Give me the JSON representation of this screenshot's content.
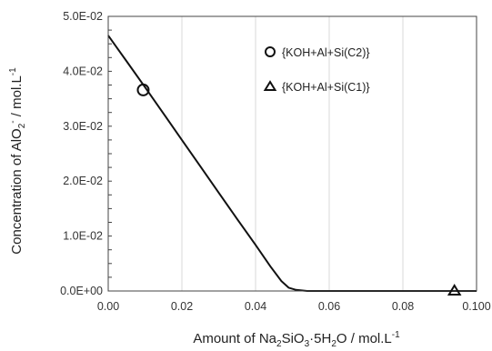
{
  "chart_data": {
    "type": "line",
    "xlabel_parts": {
      "pre": "Amount of Na",
      "sub1": "2",
      "mid1": "SiO",
      "sub2": "3",
      "mid2": "·5H",
      "sub3": "2",
      "post": "O / mol.L",
      "sup": "-1"
    },
    "ylabel_parts": {
      "pre": "Concentration of AlO",
      "sub": "2",
      "sup": "-",
      "post": " / mol.L",
      "sup2": "-1"
    },
    "xlim": [
      0.0,
      0.1
    ],
    "ylim": [
      0.0,
      0.05
    ],
    "x_ticks": [
      0.0,
      0.02,
      0.04,
      0.06,
      0.08,
      0.1
    ],
    "x_tick_labels": [
      "0.00",
      "0.02",
      "0.04",
      "0.06",
      "0.08",
      "0.100"
    ],
    "y_ticks": [
      0.0,
      0.01,
      0.02,
      0.03,
      0.04,
      0.05
    ],
    "y_tick_labels": [
      "0.0E+00",
      "1.0E-02",
      "2.0E-02",
      "3.0E-02",
      "4.0E-02",
      "5.0E-02"
    ],
    "grid": "vertical",
    "legend_position": "top-right",
    "series": [
      {
        "role": "model-curve",
        "marker": "none",
        "points": [
          [
            0.0,
            0.0465
          ],
          [
            0.005,
            0.0418
          ],
          [
            0.01,
            0.0371
          ],
          [
            0.015,
            0.0323
          ],
          [
            0.02,
            0.0275
          ],
          [
            0.025,
            0.0227
          ],
          [
            0.03,
            0.0179
          ],
          [
            0.035,
            0.0131
          ],
          [
            0.04,
            0.0084
          ],
          [
            0.044,
            0.0045
          ],
          [
            0.047,
            0.0018
          ],
          [
            0.049,
            0.0006
          ],
          [
            0.051,
            0.0002
          ],
          [
            0.054,
            0.0
          ],
          [
            0.06,
            0.0
          ],
          [
            0.08,
            0.0
          ],
          [
            0.1,
            0.0
          ]
        ]
      },
      {
        "name": "{KOH+Al+Si(C2)}",
        "marker": "circle",
        "points": [
          [
            0.0095,
            0.0366
          ]
        ]
      },
      {
        "name": "{KOH+Al+Si(C1)}",
        "marker": "triangle",
        "points": [
          [
            0.094,
            0.0
          ]
        ]
      }
    ]
  }
}
